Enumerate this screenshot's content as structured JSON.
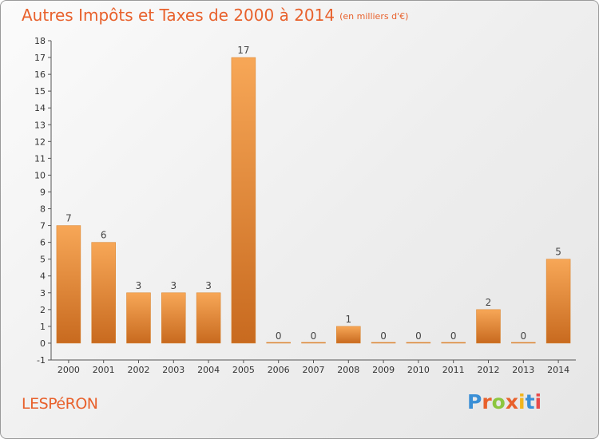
{
  "title": "Autres Impôts et Taxes de 2000 à 2014",
  "unit_note": "(en milliers d'€)",
  "commune": "LESPéRON",
  "logo": {
    "text": "Proxiti",
    "letters": [
      "P",
      "r",
      "o",
      "x",
      "i",
      "t",
      "i"
    ],
    "colors": [
      "#3a8fd6",
      "#e8612c",
      "#8cc63f",
      "#e8612c",
      "#f2b51d",
      "#3a8fd6",
      "#e84a4a"
    ]
  },
  "colors": {
    "accent": "#e8612c",
    "bar_light": "#f7a757",
    "bar_dark": "#c86a1f"
  },
  "chart_data": {
    "type": "bar",
    "title": "Autres Impôts et Taxes de 2000 à 2014",
    "categories": [
      "2000",
      "2001",
      "2002",
      "2003",
      "2004",
      "2005",
      "2006",
      "2007",
      "2008",
      "2009",
      "2010",
      "2011",
      "2012",
      "2013",
      "2014"
    ],
    "values": [
      7,
      6,
      3,
      3,
      3,
      17,
      0,
      0,
      1,
      0,
      0,
      0,
      2,
      0,
      5
    ],
    "data_labels": [
      "7",
      "6",
      "3",
      "3",
      "3",
      "17",
      "0",
      "0",
      "1",
      "0",
      "0",
      "0",
      "2",
      "0",
      "5"
    ],
    "y_ticks": [
      -1,
      0,
      1,
      2,
      3,
      4,
      5,
      6,
      7,
      8,
      9,
      10,
      11,
      12,
      13,
      14,
      15,
      16,
      17,
      18
    ],
    "y_tick_labels": [
      "-1",
      "0",
      "1",
      "2",
      "3",
      "4",
      "5",
      "6",
      "7",
      "8",
      "9",
      "10",
      "11",
      "12",
      "13",
      "14",
      "15",
      "16",
      "17",
      "18"
    ],
    "ylim": [
      -1,
      18
    ],
    "grid": false,
    "legend": "none"
  }
}
